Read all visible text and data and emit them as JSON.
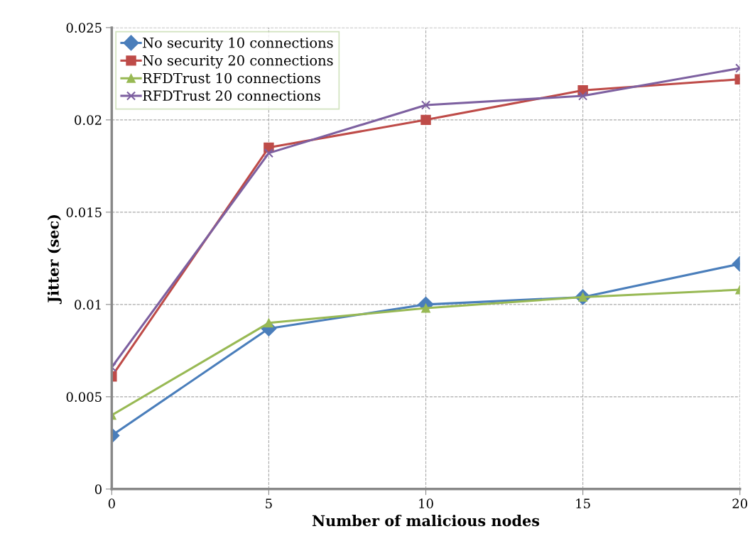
{
  "chart_data": {
    "type": "line",
    "xlabel": "Number of malicious nodes",
    "ylabel": "Jitter (sec)",
    "x": [
      0,
      5,
      10,
      15,
      20
    ],
    "series": [
      {
        "name": "No security 10 connections",
        "color": "#4a7ebb",
        "marker": "diamond",
        "values": [
          0.0029,
          0.0087,
          0.01,
          0.0104,
          0.0122
        ]
      },
      {
        "name": "No security 20 connections",
        "color": "#be4b48",
        "marker": "square",
        "values": [
          0.0061,
          0.0185,
          0.02,
          0.0216,
          0.0222
        ]
      },
      {
        "name": "RFDTrust 10 connections",
        "color": "#98b954",
        "marker": "triangle",
        "values": [
          0.004,
          0.009,
          0.0098,
          0.0104,
          0.0108
        ]
      },
      {
        "name": "RFDTrust 20 connections",
        "color": "#7d60a0",
        "marker": "cross",
        "values": [
          0.0066,
          0.0182,
          0.0208,
          0.0213,
          0.0228
        ]
      }
    ],
    "xlim": [
      0,
      20
    ],
    "xticks": [
      0,
      5,
      10,
      15,
      20
    ],
    "ylim": [
      0,
      0.025
    ],
    "yticks": [
      0,
      {
        "value": 0.005,
        "label": "0.005"
      },
      {
        "value": 0.01,
        "label": "0.01"
      },
      {
        "value": 0.015,
        "label": "0.015"
      },
      {
        "value": 0.02,
        "label": "0.02"
      },
      {
        "value": 0.025,
        "label": "0.025"
      }
    ],
    "grid": true,
    "legend": "top left",
    "line_style": "solid"
  }
}
